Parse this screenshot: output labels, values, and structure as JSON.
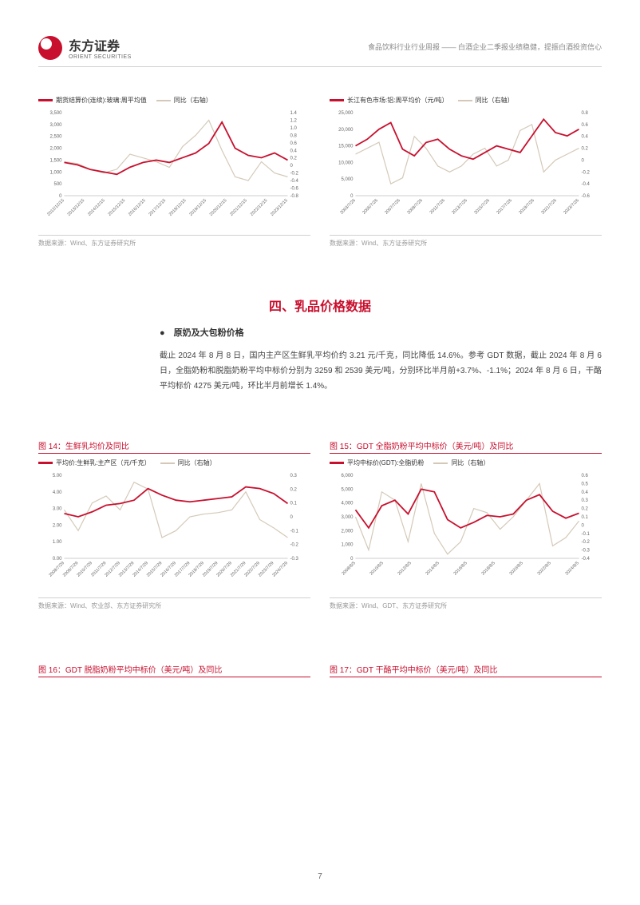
{
  "header": {
    "logo_cn": "东方证券",
    "logo_en": "ORIENT SECURITIES",
    "title": "食品饮料行业行业周报 —— 白酒企业二季报业绩稳健，提振白酒投资信心"
  },
  "colors": {
    "brand": "#c8102e",
    "series_primary": "#c8102e",
    "series_secondary": "#d4c9b8",
    "grid": "#e8e8e8",
    "text": "#333333",
    "muted": "#999999"
  },
  "chart12": {
    "legend1": "期货结算价(连续):玻璃:周平均值",
    "legend2": "同比（右轴）",
    "y_left_ticks": [
      "0",
      "500",
      "1,000",
      "1,500",
      "2,000",
      "2,500",
      "3,000",
      "3,500"
    ],
    "y_right_ticks": [
      "-0.8",
      "-0.6",
      "-0.4",
      "-0.2",
      "0",
      "0.2",
      "0.4",
      "0.6",
      "0.8",
      "1.0",
      "1.2",
      "1.4"
    ],
    "x_ticks": [
      "2012/12/15",
      "2013/12/15",
      "2014/12/15",
      "2015/12/15",
      "2016/12/15",
      "2017/12/15",
      "2018/12/15",
      "2019/12/15",
      "2020/12/15",
      "2021/12/15",
      "2022/12/15",
      "2023/12/15"
    ],
    "primary_values": [
      1400,
      1300,
      1100,
      1000,
      900,
      1200,
      1400,
      1500,
      1400,
      1600,
      1800,
      2200,
      3100,
      2000,
      1700,
      1600,
      1800,
      1500
    ],
    "secondary_values": [
      0.1,
      0.05,
      -0.1,
      -0.2,
      -0.1,
      0.3,
      0.2,
      0.1,
      -0.05,
      0.5,
      0.8,
      1.2,
      0.4,
      -0.3,
      -0.4,
      0.1,
      -0.2,
      -0.3
    ],
    "y_left_max": 3500,
    "y_right_min": -0.8,
    "y_right_max": 1.4,
    "source": "数据来源：Wind、东方证券研究所"
  },
  "chart13": {
    "legend1": "长江有色市场:铝:周平均价（元/吨）",
    "legend2": "同比（右轴）",
    "y_left_ticks": [
      "0",
      "5,000",
      "10,000",
      "15,000",
      "20,000",
      "25,000"
    ],
    "y_right_ticks": [
      "-0.6",
      "-0.4",
      "-0.2",
      "0",
      "0.2",
      "0.4",
      "0.6",
      "0.8"
    ],
    "x_ticks": [
      "2003/7/26",
      "2005/7/26",
      "2007/7/26",
      "2009/7/26",
      "2011/7/26",
      "2013/7/26",
      "2015/7/26",
      "2017/7/26",
      "2019/7/26",
      "2021/7/26",
      "2023/7/26"
    ],
    "primary_values": [
      15000,
      17000,
      20000,
      22000,
      14000,
      12000,
      16000,
      17000,
      14000,
      12000,
      11000,
      13000,
      15000,
      14000,
      13000,
      18000,
      23000,
      19000,
      18000,
      20000
    ],
    "secondary_values": [
      0.1,
      0.2,
      0.3,
      -0.4,
      -0.3,
      0.4,
      0.2,
      -0.1,
      -0.2,
      -0.1,
      0.1,
      0.2,
      -0.1,
      0.0,
      0.5,
      0.6,
      -0.2,
      0.0,
      0.1,
      0.2
    ],
    "y_left_max": 25000,
    "y_right_min": -0.6,
    "y_right_max": 0.8,
    "source": "数据来源：Wind、东方证券研究所"
  },
  "section": {
    "title": "四、乳品价格数据",
    "bullet": "●　原奶及大包粉价格",
    "body": "截止 2024 年 8 月 8 日，国内主产区生鲜乳平均价约 3.21 元/千克，同比降低 14.6%。参考 GDT 数据，截止 2024 年 8 月 6 日，全脂奶粉和脱脂奶粉平均中标价分别为 3259 和 2539 美元/吨，分别环比半月前+3.7%、-1.1%；2024 年 8 月 6 日，干酪平均标价 4275 美元/吨，环比半月前增长 1.4%。"
  },
  "chart14": {
    "title": "图 14：生鲜乳均价及同比",
    "legend1": "平均价:生鲜乳:主产区（元/千克）",
    "legend2": "同比（右轴）",
    "y_left_ticks": [
      "0.00",
      "1.00",
      "2.00",
      "3.00",
      "4.00",
      "5.00"
    ],
    "y_right_ticks": [
      "-0.3",
      "-0.2",
      "-0.1",
      "0",
      "0.1",
      "0.2",
      "0.3"
    ],
    "x_ticks": [
      "2008/7/29",
      "2009/7/29",
      "2010/7/29",
      "2011/7/29",
      "2012/7/29",
      "2013/7/29",
      "2014/7/29",
      "2015/7/29",
      "2016/7/29",
      "2017/7/29",
      "2018/7/29",
      "2019/7/29",
      "2020/7/29",
      "2021/7/29",
      "2022/7/29",
      "2023/7/29",
      "2024/7/29"
    ],
    "primary_values": [
      2.7,
      2.5,
      2.8,
      3.2,
      3.3,
      3.5,
      4.2,
      3.8,
      3.5,
      3.4,
      3.5,
      3.6,
      3.7,
      4.3,
      4.2,
      3.9,
      3.3
    ],
    "secondary_values": [
      0.05,
      -0.1,
      0.1,
      0.15,
      0.05,
      0.25,
      0.2,
      -0.15,
      -0.1,
      0.0,
      0.02,
      0.03,
      0.05,
      0.18,
      -0.02,
      -0.08,
      -0.15
    ],
    "y_left_max": 5.0,
    "y_right_min": -0.3,
    "y_right_max": 0.3,
    "source": "数据来源：Wind、农业部、东方证券研究所"
  },
  "chart15": {
    "title": "图 15：GDT 全脂奶粉平均中标价（美元/吨）及同比",
    "legend1": "平均中标价(GDT):全脂奶粉",
    "legend2": "同比（右轴）",
    "y_left_ticks": [
      "0",
      "1,000",
      "2,000",
      "3,000",
      "4,000",
      "5,000",
      "6,000"
    ],
    "y_right_ticks": [
      "-0.4",
      "-0.3",
      "-0.2",
      "-0.1",
      "0",
      "0.1",
      "0.2",
      "0.3",
      "0.4",
      "0.5",
      "0.6"
    ],
    "x_ticks": [
      "2008/8/5",
      "2010/8/5",
      "2012/8/5",
      "2014/8/5",
      "2016/8/5",
      "2018/8/5",
      "2020/8/5",
      "2022/8/5",
      "2024/8/5"
    ],
    "primary_values": [
      3500,
      2200,
      3800,
      4200,
      3200,
      5000,
      4800,
      2800,
      2200,
      2600,
      3100,
      3000,
      3200,
      4200,
      4600,
      3400,
      2900,
      3259
    ],
    "secondary_values": [
      0.1,
      -0.3,
      0.4,
      0.3,
      -0.2,
      0.5,
      -0.1,
      -0.35,
      -0.2,
      0.2,
      0.15,
      -0.05,
      0.1,
      0.3,
      0.5,
      -0.25,
      -0.15,
      0.05
    ],
    "y_left_max": 6000,
    "y_right_min": -0.4,
    "y_right_max": 0.6,
    "source": "数据来源：Wind、GDT、东方证券研究所"
  },
  "chart16": {
    "title": "图 16：GDT 脱脂奶粉平均中标价（美元/吨）及同比"
  },
  "chart17": {
    "title": "图 17：GDT 干酪平均中标价（美元/吨）及同比"
  },
  "page_number": "7"
}
